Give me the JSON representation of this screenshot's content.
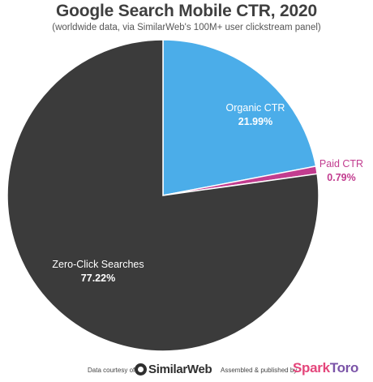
{
  "title": "Google Search Mobile CTR, 2020",
  "subtitle": "(worldwide data, via SimilarWeb's 100M+ user clickstream panel)",
  "chart_data": {
    "type": "pie",
    "start_angle_deg": 0,
    "direction": "clockwise",
    "slices": [
      {
        "name": "Organic CTR",
        "label": "Organic CTR",
        "value": 21.99,
        "value_label": "21.99%",
        "color": "#4bade9",
        "label_color": "#ffffff"
      },
      {
        "name": "Paid CTR",
        "label": "Paid CTR",
        "value": 0.79,
        "value_label": "0.79%",
        "color": "#c23c8f",
        "label_color": "#c23c8f"
      },
      {
        "name": "Zero-Click Searches",
        "label": "Zero-Click Searches",
        "value": 77.22,
        "value_label": "77.22%",
        "color": "#3b3b3b",
        "label_color": "#ffffff"
      }
    ]
  },
  "footer": {
    "data_credit": "Data courtesy of",
    "data_logo": "SimilarWeb",
    "published_credit": "Assembled & published by",
    "publisher_logo_part1": "Spark",
    "publisher_logo_part2": "Toro"
  }
}
